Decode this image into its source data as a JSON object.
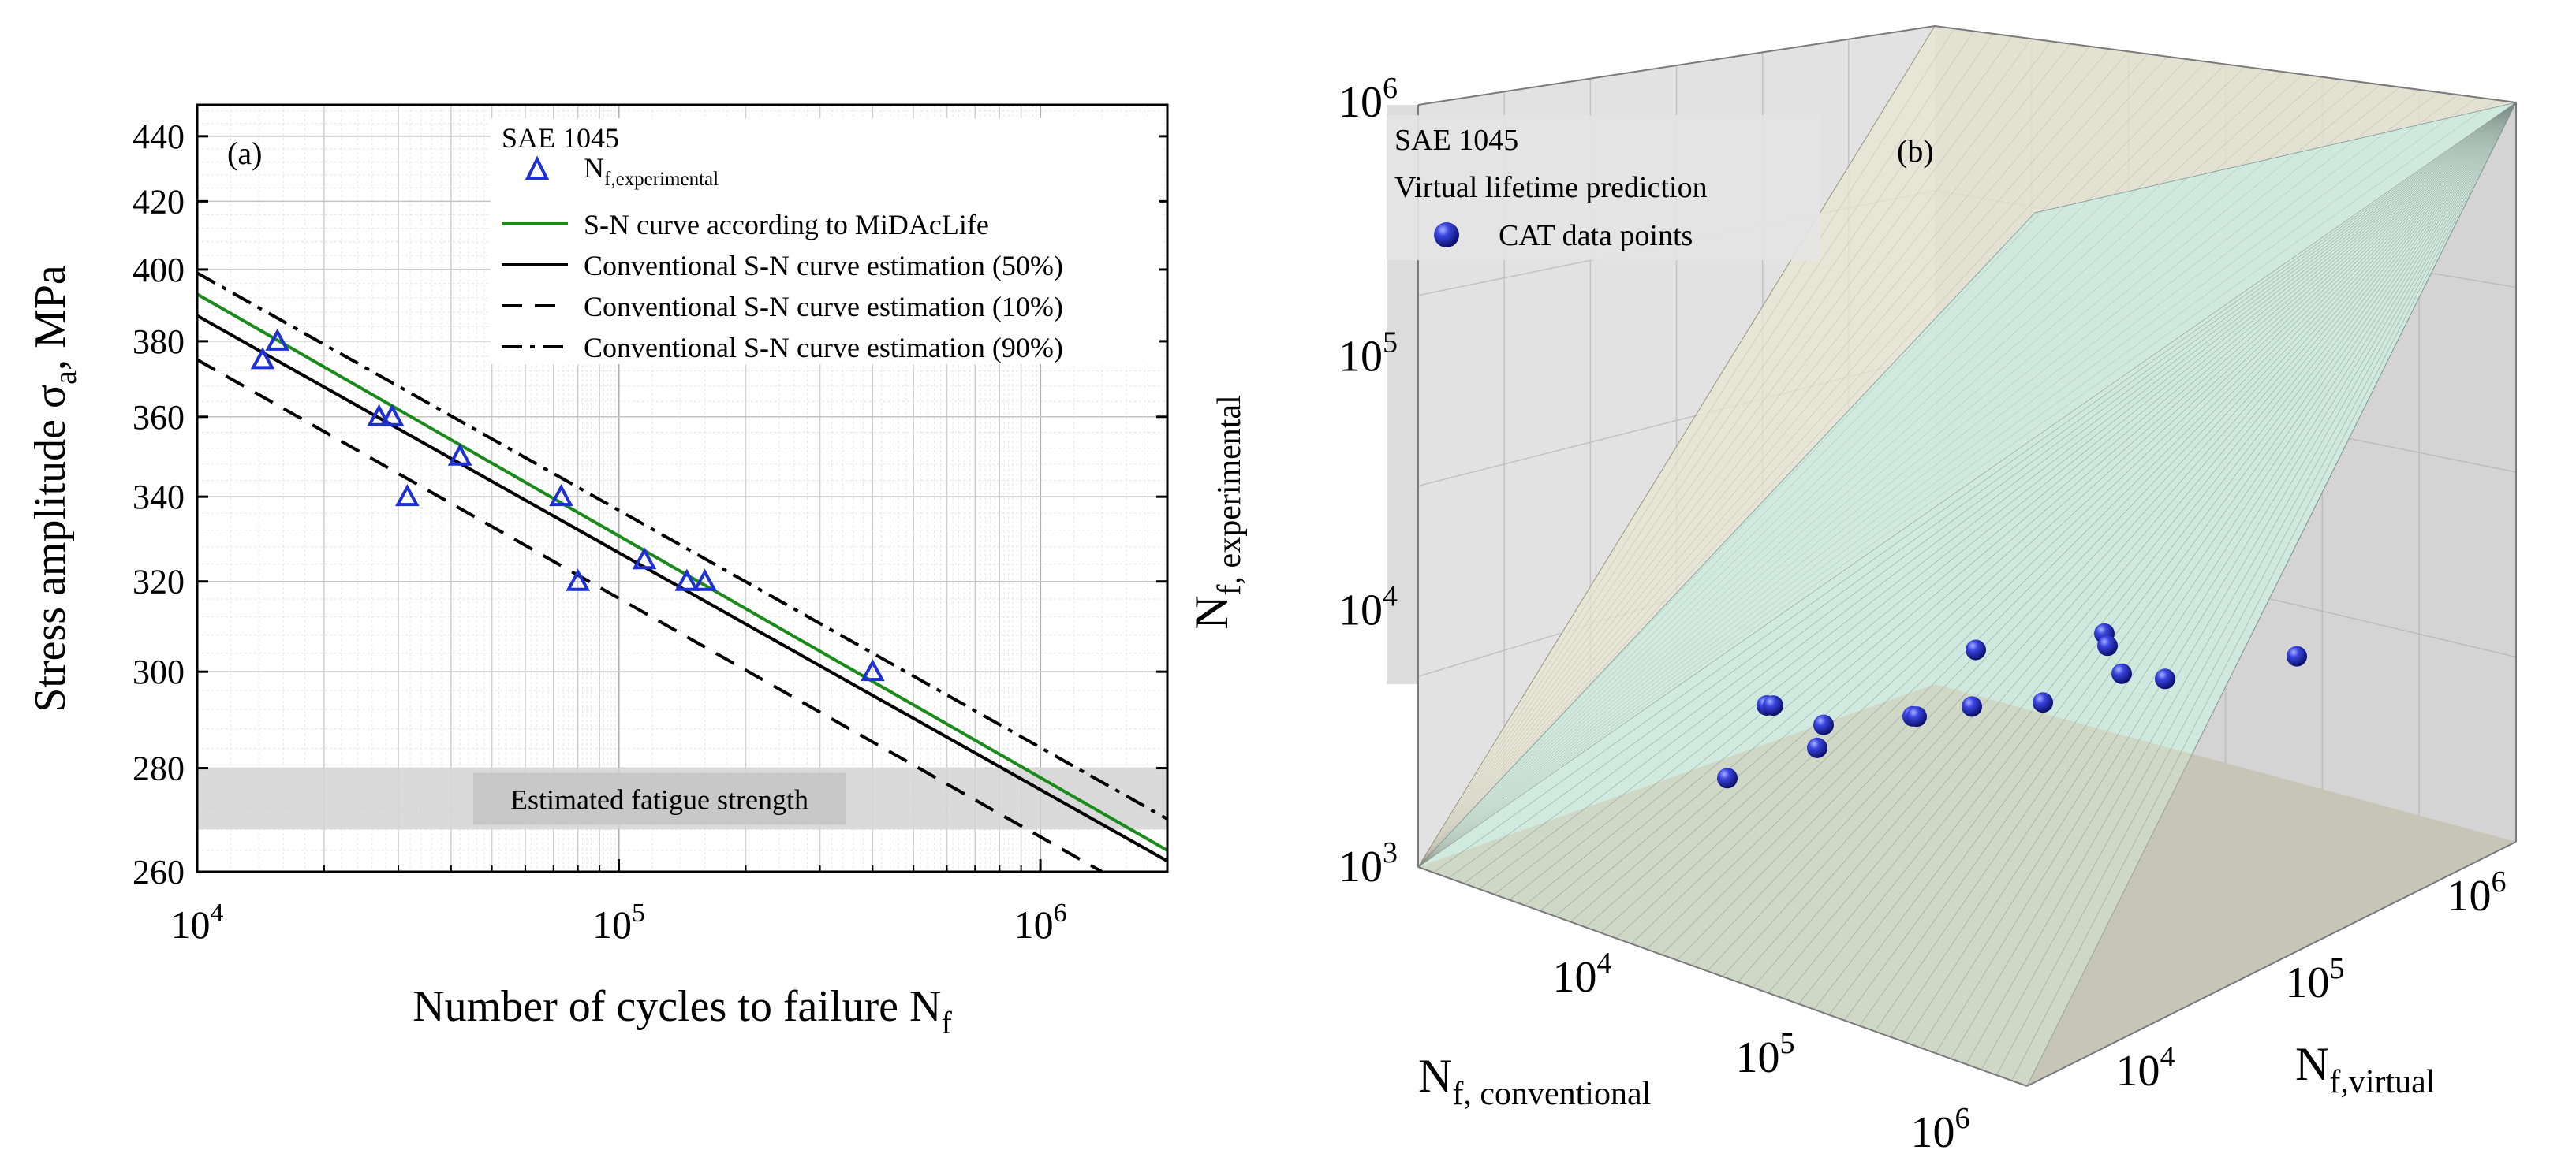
{
  "chart_data": [
    {
      "panel": "a",
      "type": "line",
      "panel_label": "(a)",
      "title": "SAE 1045",
      "xlabel": "Number of cycles to failure N",
      "xlabel_sub": "f",
      "ylabel": "Stress amplitude σ",
      "ylabel_sub": "a",
      "ylabel_suffix": ", MPa",
      "x_scale": "log",
      "y_scale": "log",
      "xlim": [
        10000,
        2000000
      ],
      "ylim": [
        260,
        450
      ],
      "x_ticks": [
        {
          "value": 10000,
          "base": "10",
          "exp": "4"
        },
        {
          "value": 100000,
          "base": "10",
          "exp": "5"
        },
        {
          "value": 1000000,
          "base": "10",
          "exp": "6"
        }
      ],
      "y_ticks": [
        260,
        280,
        300,
        320,
        340,
        360,
        380,
        400,
        420,
        440
      ],
      "grid": true,
      "legend_position": "top-right",
      "legend": [
        {
          "key": "experimental",
          "label": "N",
          "sub": "f,experimental"
        },
        {
          "key": "midaclife",
          "label": "S-N curve according to MiDAcLife",
          "sub": ""
        },
        {
          "key": "conv50",
          "label": "Conventional S-N curve estimation (50%)",
          "sub": ""
        },
        {
          "key": "conv10",
          "label": "Conventional S-N curve estimation (10%)",
          "sub": ""
        },
        {
          "key": "conv90",
          "label": "Conventional S-N curve estimation (90%)",
          "sub": ""
        }
      ],
      "series": [
        {
          "name": "S-N curve according to MiDAcLife",
          "key": "midaclife",
          "color": "#1a8a1a",
          "dash": "solid",
          "x": [
            10000,
            2000000
          ],
          "y": [
            393,
            264
          ]
        },
        {
          "name": "Conventional S-N curve estimation (50%)",
          "key": "conv50",
          "color": "#000000",
          "dash": "solid",
          "x": [
            10000,
            2000000
          ],
          "y": [
            387,
            262
          ]
        },
        {
          "name": "Conventional S-N curve estimation (10%)",
          "key": "conv10",
          "color": "#000000",
          "dash": "dash",
          "x": [
            10000,
            1400000
          ],
          "y": [
            375,
            260
          ]
        },
        {
          "name": "Conventional S-N curve estimation (90%)",
          "key": "conv90",
          "color": "#000000",
          "dash": "dashdot",
          "x": [
            10000,
            2000000
          ],
          "y": [
            399,
            270
          ]
        }
      ],
      "points": {
        "name": "N_f,experimental",
        "color": "#1f2fd6",
        "x": [
          14300,
          15500,
          27000,
          29000,
          31500,
          42000,
          73000,
          80000,
          115000,
          145000,
          160000,
          400000
        ],
        "y": [
          375,
          380,
          360,
          360,
          340,
          350,
          340,
          320,
          325,
          320,
          320,
          300
        ]
      },
      "band": {
        "label": "Estimated fatigue strength",
        "y_range": [
          268,
          280
        ],
        "color": "#d3d3d3"
      }
    },
    {
      "panel": "b",
      "type": "scatter",
      "panel_label": "(b)",
      "title": "SAE 1045",
      "subtitle": "Virtual lifetime prediction",
      "legend": [
        {
          "key": "cat",
          "label": "CAT data points"
        }
      ],
      "point_color": "#1f2fd6",
      "zlabel": "N",
      "zlabel_sub": "f, experimental",
      "xlabel": "N",
      "xlabel_sub": "f, conventional",
      "ylabel": "N",
      "ylabel_sub": "f,virtual",
      "z_ticks": [
        {
          "value": 1000,
          "base": "10",
          "exp": "3"
        },
        {
          "value": 10000,
          "base": "10",
          "exp": "4"
        },
        {
          "value": 100000,
          "base": "10",
          "exp": "5"
        },
        {
          "value": 1000000,
          "base": "10",
          "exp": "6"
        }
      ],
      "x_ticks": [
        {
          "value": 10000,
          "base": "10",
          "exp": "4"
        },
        {
          "value": 100000,
          "base": "10",
          "exp": "5"
        },
        {
          "value": 1000000,
          "base": "10",
          "exp": "6"
        }
      ],
      "y_ticks": [
        {
          "value": 10000,
          "base": "10",
          "exp": "4"
        },
        {
          "value": 100000,
          "base": "10",
          "exp": "5"
        },
        {
          "value": 1000000,
          "base": "10",
          "exp": "6"
        }
      ],
      "points_experimental": [
        6800,
        16000,
        16500,
        17800,
        14000,
        30000,
        30500,
        44000,
        75000,
        65000,
        165000,
        125000,
        150000,
        148000,
        350000
      ]
    }
  ]
}
